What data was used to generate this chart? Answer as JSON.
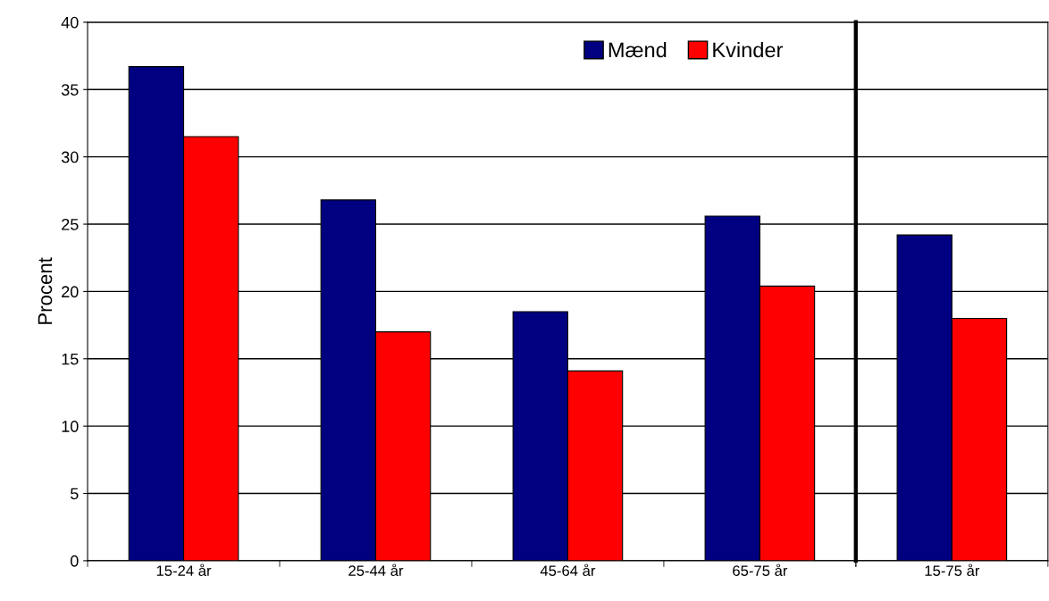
{
  "chart_data": [
    {
      "type": "bar",
      "ylabel": "Procent",
      "categories": [
        "15-24 år",
        "25-44 år",
        "45-64 år",
        "65-75 år"
      ],
      "series": [
        {
          "name": "Mænd",
          "color": "#000080",
          "values": [
            36.7,
            26.8,
            18.5,
            25.6
          ]
        },
        {
          "name": "Kvinder",
          "color": "#ff0000",
          "values": [
            31.5,
            17.0,
            14.1,
            20.4
          ]
        }
      ],
      "ylim": [
        0,
        40
      ],
      "yticks": [
        0,
        5,
        10,
        15,
        20,
        25,
        30,
        35,
        40
      ],
      "grid": "y",
      "legend": "top right"
    },
    {
      "type": "bar",
      "categories": [
        "15-75 år"
      ],
      "series": [
        {
          "color": "#000080",
          "values": [
            24.2
          ]
        },
        {
          "color": "#ff0000",
          "values": [
            18.0
          ]
        }
      ],
      "ylim": [
        0,
        40
      ],
      "yticks": [
        0,
        5,
        10,
        15,
        20,
        25,
        30,
        35,
        40
      ],
      "grid": "y",
      "tick_labels": "x"
    }
  ]
}
